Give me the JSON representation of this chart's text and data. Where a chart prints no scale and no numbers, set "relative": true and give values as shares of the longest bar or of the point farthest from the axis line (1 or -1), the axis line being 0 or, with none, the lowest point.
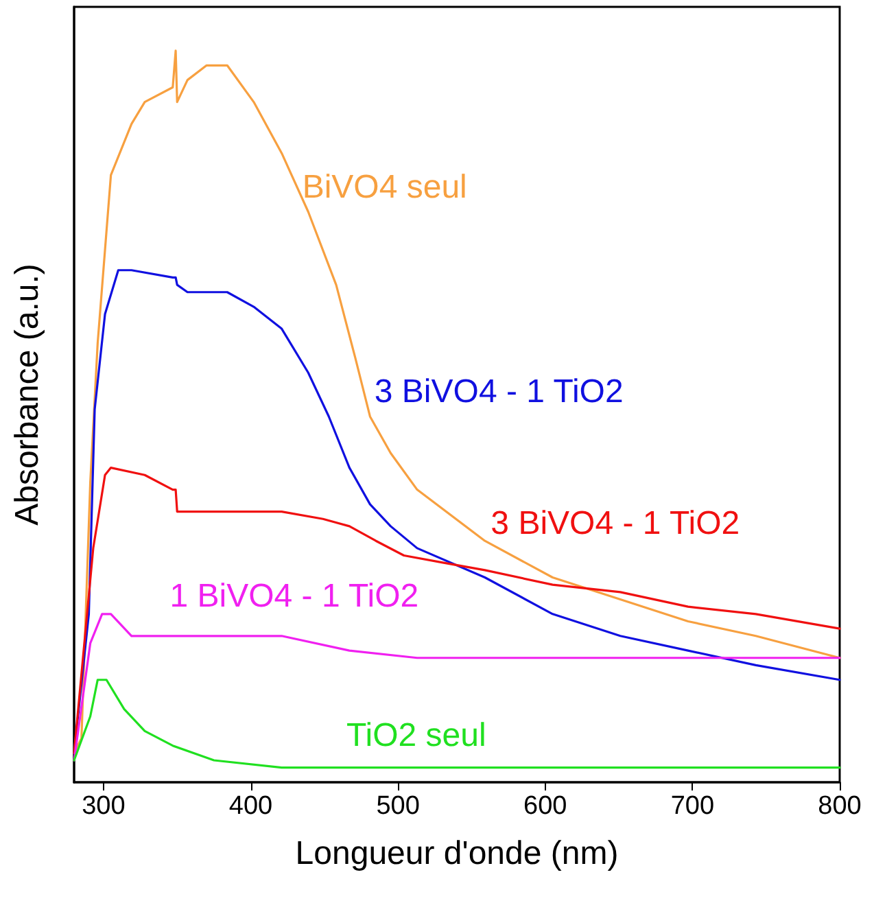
{
  "chart_data": {
    "type": "line",
    "relative": true,
    "xlabel": "Longueur d'onde (nm)",
    "ylabel": "Absorbance (a.u.)",
    "xlim": [
      280,
      800
    ],
    "xticks": [
      300,
      400,
      500,
      600,
      700,
      800
    ],
    "grid": false,
    "legend": false,
    "marker": "none",
    "line_style": "solid",
    "series": [
      {
        "name": "BiVO4 seul",
        "color": "#f7a040",
        "x": [
          280,
          285,
          291,
          296,
          305,
          319,
          328,
          347,
          349,
          350,
          357,
          370,
          384,
          402,
          421,
          439,
          458,
          471,
          481,
          495,
          513,
          559,
          605,
          651,
          697,
          743,
          800
        ],
        "values": [
          0.04,
          0.06,
          0.41,
          0.6,
          0.83,
          0.9,
          0.93,
          0.95,
          1.0,
          0.93,
          0.96,
          0.98,
          0.98,
          0.93,
          0.86,
          0.78,
          0.68,
          0.58,
          0.5,
          0.45,
          0.4,
          0.33,
          0.28,
          0.25,
          0.22,
          0.2,
          0.17
        ]
      },
      {
        "name": "3 BiVO4 - 1 TiO2",
        "color": "#1010e0",
        "x": [
          280,
          290,
          294,
          301,
          310,
          319,
          347,
          349,
          350,
          357,
          384,
          402,
          421,
          439,
          453,
          467,
          481,
          495,
          513,
          559,
          605,
          651,
          697,
          743,
          800
        ],
        "values": [
          0.04,
          0.23,
          0.51,
          0.64,
          0.7,
          0.7,
          0.69,
          0.69,
          0.68,
          0.67,
          0.67,
          0.65,
          0.62,
          0.56,
          0.5,
          0.43,
          0.38,
          0.35,
          0.32,
          0.28,
          0.23,
          0.2,
          0.18,
          0.16,
          0.14
        ]
      },
      {
        "name": "3 BiVO4 - 1 TiO2",
        "color": "#f01010",
        "x": [
          280,
          293,
          301,
          305,
          328,
          347,
          349,
          350,
          375,
          421,
          449,
          467,
          485,
          504,
          531,
          559,
          605,
          651,
          697,
          743,
          800
        ],
        "values": [
          0.04,
          0.32,
          0.42,
          0.43,
          0.42,
          0.4,
          0.4,
          0.37,
          0.37,
          0.37,
          0.36,
          0.35,
          0.33,
          0.31,
          0.3,
          0.29,
          0.27,
          0.26,
          0.24,
          0.23,
          0.21
        ]
      },
      {
        "name": "1 BiVO4 - 1 TiO2",
        "color": "#f020f0",
        "x": [
          280,
          291,
          299,
          305,
          319,
          347,
          421,
          467,
          513,
          605,
          697,
          800
        ],
        "values": [
          0.03,
          0.19,
          0.23,
          0.23,
          0.2,
          0.2,
          0.2,
          0.18,
          0.17,
          0.17,
          0.17,
          0.17
        ]
      },
      {
        "name": "TiO2 seul",
        "color": "#20e020",
        "x": [
          280,
          291,
          296,
          302,
          314,
          328,
          347,
          375,
          421,
          513,
          605,
          697,
          800
        ],
        "values": [
          0.03,
          0.09,
          0.14,
          0.14,
          0.1,
          0.07,
          0.05,
          0.03,
          0.02,
          0.02,
          0.02,
          0.02,
          0.02
        ]
      }
    ]
  }
}
